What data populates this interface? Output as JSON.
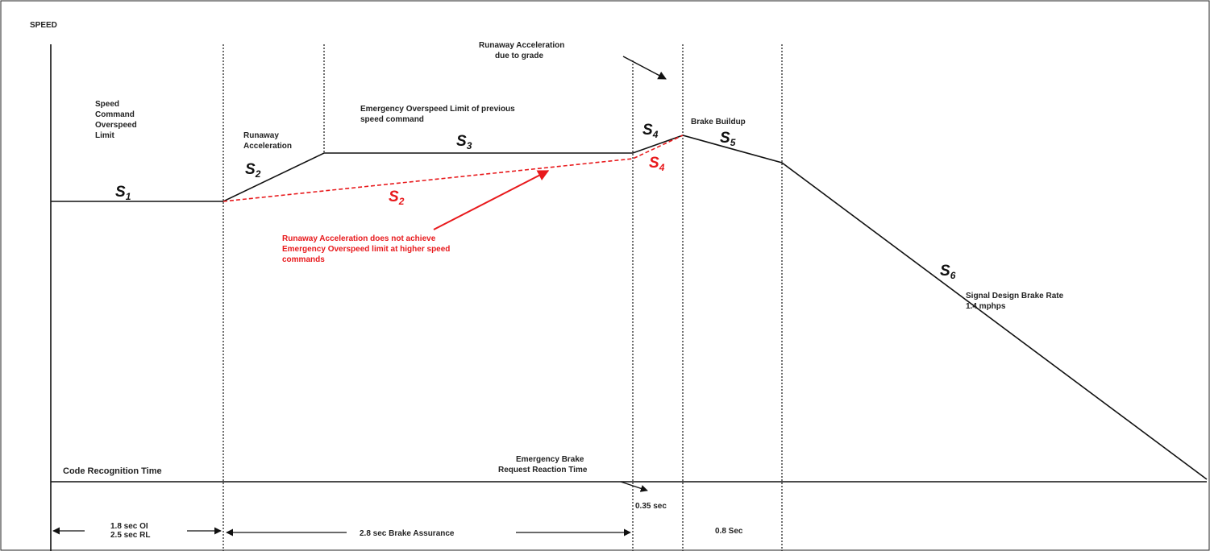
{
  "axis_label": "SPEED",
  "labels": {
    "speed_command": [
      "Speed",
      "Command",
      "Overspeed",
      "Limit"
    ],
    "runaway_accel": [
      "Runaway",
      "Acceleration"
    ],
    "emergency_limit": [
      "Emergency Overspeed Limit of previous",
      "speed command"
    ],
    "runaway_grade": [
      "Runaway Acceleration",
      "due to grade"
    ],
    "brake_buildup": "Brake Buildup",
    "signal_design": [
      "Signal Design Brake Rate",
      "1.4 mphps"
    ],
    "red_note": [
      "Runaway Acceleration does not achieve",
      "Emergency Overspeed limit at higher speed",
      "commands"
    ],
    "code_recognition": "Code Recognition Time",
    "emergency_reaction": [
      "Emergency Brake",
      "Request Reaction Time"
    ]
  },
  "segments": {
    "s1": {
      "letter": "S",
      "sub": "1"
    },
    "s2": {
      "letter": "S",
      "sub": "2"
    },
    "s3": {
      "letter": "S",
      "sub": "3"
    },
    "s4": {
      "letter": "S",
      "sub": "4"
    },
    "s5": {
      "letter": "S",
      "sub": "5"
    },
    "s6": {
      "letter": "S",
      "sub": "6"
    },
    "s2_red": {
      "letter": "S",
      "sub": "2"
    },
    "s4_red": {
      "letter": "S",
      "sub": "4"
    }
  },
  "timing": {
    "oi": [
      "1.8 sec OI",
      "2.5 sec RL"
    ],
    "brake_assurance": "2.8 sec  Brake Assurance",
    "reaction": "0.35 sec",
    "buildup": "0.8 Sec"
  },
  "colors": {
    "line": "#111111",
    "red": "#e8191c"
  }
}
